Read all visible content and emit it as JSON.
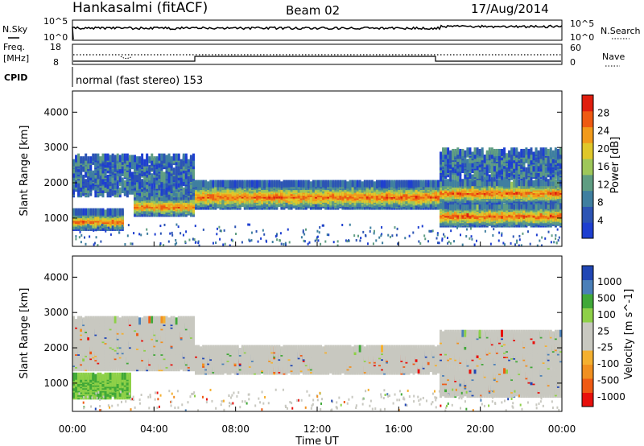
{
  "header": {
    "station": "Hankasalmi (fitACF)",
    "beam": "Beam 02",
    "date": "17/Aug/2014"
  },
  "noise_panel": {
    "left_label": "N.Sky",
    "right_label": "N.Search",
    "left_ticks": [
      "10^5",
      "10^0"
    ],
    "right_ticks": [
      "10^5",
      "10^0"
    ]
  },
  "freq_panel": {
    "left_label_1": "Freq.",
    "left_label_2": "[MHz]",
    "right_label": "Nave",
    "left_ticks": [
      "18",
      "8"
    ],
    "right_ticks": [
      "60",
      "0"
    ]
  },
  "cpid": {
    "label": "CPID",
    "text": "normal (fast stereo) 153"
  },
  "colors": {
    "power_scale": [
      "#1e3fd0",
      "#2c54b4",
      "#3f7fa0",
      "#5f9d82",
      "#9ec75a",
      "#e0c72a",
      "#f19a1b",
      "#ee5a12",
      "#e01e0e"
    ],
    "velocity_scale": [
      "#e8100c",
      "#ef5a14",
      "#f19020",
      "#f4b030",
      "#c8c8c0",
      "#c8c8c0",
      "#8ed048",
      "#40a838",
      "#4a7fb8",
      "#2046b4"
    ]
  },
  "chart_data": [
    {
      "type": "heatmap",
      "title": "Power",
      "ylabel": "Slant Range [km]",
      "ylim": [
        200,
        4600
      ],
      "xlim_hours": [
        0,
        24
      ],
      "yticks": [
        1000,
        2000,
        3000,
        4000
      ],
      "colorbar_label": "Power [dB]",
      "colorbar_ticks": [
        4,
        8,
        12,
        16,
        20,
        24,
        28
      ],
      "colorbar_range": [
        0,
        32
      ],
      "bands": [
        {
          "x": [
            0,
            2.5
          ],
          "y": [
            800,
            1250
          ],
          "level": "strong"
        },
        {
          "x": [
            3,
            6
          ],
          "y": [
            1200,
            1700
          ],
          "level": "strong"
        },
        {
          "x": [
            6,
            18
          ],
          "y": [
            1400,
            2050
          ],
          "level": "strong"
        },
        {
          "x": [
            0,
            6
          ],
          "y": [
            1750,
            2800
          ],
          "level": "weak"
        },
        {
          "x": [
            18,
            24
          ],
          "y": [
            900,
            1450
          ],
          "level": "strong"
        },
        {
          "x": [
            18,
            24
          ],
          "y": [
            1550,
            2100
          ],
          "level": "strong"
        },
        {
          "x": [
            18,
            24
          ],
          "y": [
            2200,
            3000
          ],
          "level": "weak"
        }
      ]
    },
    {
      "type": "heatmap",
      "title": "Velocity",
      "ylabel": "Slant Range [km]",
      "xlabel": "Time UT",
      "ylim": [
        200,
        4600
      ],
      "xlim_hours": [
        0,
        24
      ],
      "yticks": [
        1000,
        2000,
        3000,
        4000
      ],
      "xticks": [
        "00:00",
        "04:00",
        "08:00",
        "12:00",
        "16:00",
        "20:00",
        "00:00"
      ],
      "colorbar_label": "Velocity [m s^-1]",
      "colorbar_ticks": [
        "1000",
        "500",
        "100",
        "25",
        "-25",
        "-100",
        "-500",
        "-1000"
      ],
      "bands": [
        {
          "x": [
            0,
            6
          ],
          "y": [
            1500,
            2900
          ],
          "level": "ground"
        },
        {
          "x": [
            6,
            18
          ],
          "y": [
            1400,
            2050
          ],
          "level": "ground"
        },
        {
          "x": [
            0,
            2.8
          ],
          "y": [
            700,
            1300
          ],
          "level": "green"
        },
        {
          "x": [
            18,
            24
          ],
          "y": [
            750,
            1450
          ],
          "level": "ground"
        },
        {
          "x": [
            18,
            24
          ],
          "y": [
            1550,
            2500
          ],
          "level": "ground"
        }
      ]
    }
  ]
}
